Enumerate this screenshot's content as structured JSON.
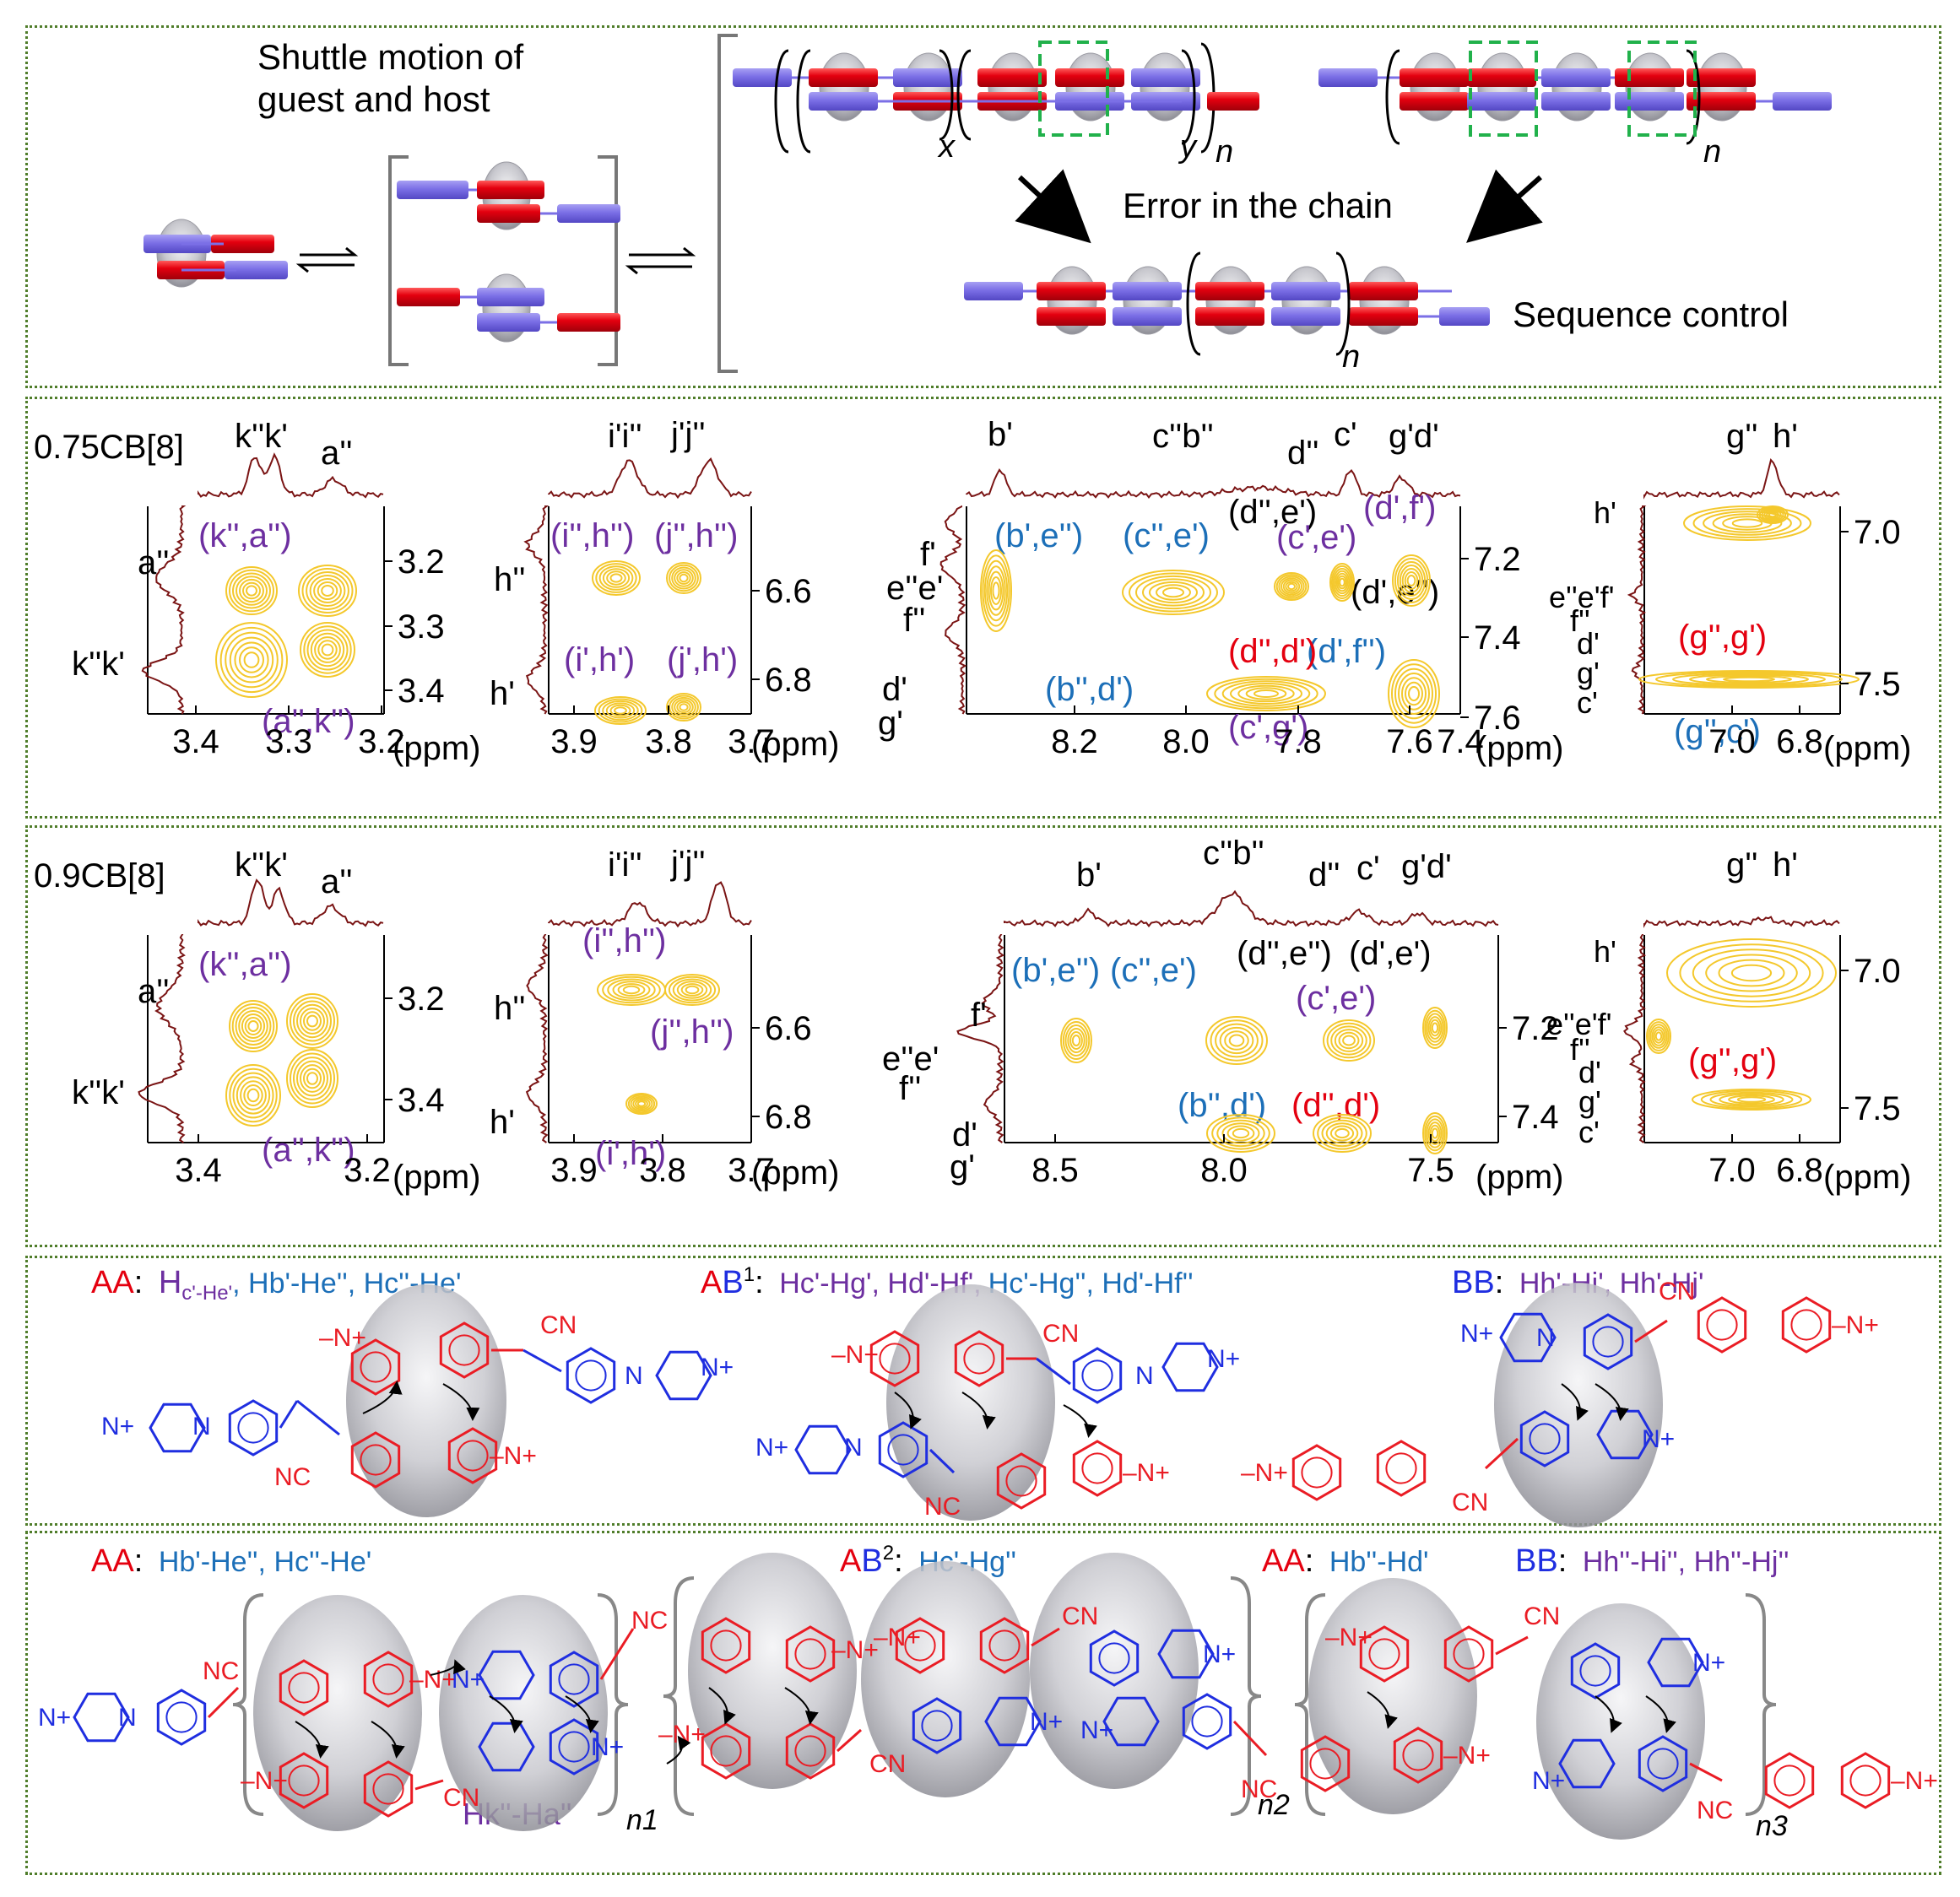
{
  "colors": {
    "guest_red": "#e4000f",
    "guest_blue": "#7b6fe6",
    "host_grey": "#b9b9bf",
    "error_box": "#21b14b",
    "contour": "#f4c82c",
    "trace": "#7a1414",
    "label_purple": "#6d2fa0",
    "label_blue": "#1c6fb8",
    "label_red": "#e4000f",
    "struct_red": "#ea1c24",
    "struct_blue": "#1f2ee0",
    "panel_border": "#4f7d2a"
  },
  "top": {
    "shuttle": "Shuttle motion of guest and host",
    "error": "Error in the chain",
    "sequence": "Sequence control",
    "sub_x": "x",
    "sub_y": "y",
    "sub_n": "n"
  },
  "nmr": {
    "ppm": "(ppm)",
    "row1": {
      "name": "0.75CB[8]",
      "p1": {
        "top": [
          "k''k'",
          "a''"
        ],
        "left": [
          "a''",
          "k''k'"
        ],
        "cross": [
          "(k'',a'')",
          "(a'',k'')"
        ],
        "yticks": [
          "3.2",
          "3.3",
          "3.4"
        ],
        "xticks": [
          "3.4",
          "3.3",
          "3.2"
        ]
      },
      "p2": {
        "top": [
          "i'i''",
          "j'j''"
        ],
        "left": [
          "h''",
          "h'"
        ],
        "cross": [
          "(i'',h'')",
          "(j'',h'')",
          "(i',h')",
          "(j',h')"
        ],
        "yticks": [
          "6.6",
          "6.8"
        ],
        "xticks": [
          "3.9",
          "3.8",
          "3.7"
        ]
      },
      "p3": {
        "top": [
          "b'",
          "c''b''",
          "d''",
          "c'",
          "g'd'"
        ],
        "left": [
          "f'",
          "e''e'",
          "f''",
          "d'",
          "g'"
        ],
        "cross_blue": [
          "(b',e'')",
          "(c'',e')",
          "(d',f'')",
          "(b'',d')"
        ],
        "cross_black": [
          "(d'',e')",
          "(d',e'')"
        ],
        "cross_purple": [
          "(c',e')",
          "(c',g')"
        ],
        "cross_red": [
          "(d'',d')"
        ],
        "cross_purple2": [
          "(d',f')"
        ],
        "yticks": [
          "7.2",
          "7.4",
          "7.6"
        ],
        "xticks": [
          "8.2",
          "8.0",
          "7.8",
          "7.6",
          "7.4"
        ]
      },
      "p4": {
        "top": [
          "g''",
          "h'"
        ],
        "left": [
          "h'",
          "e''e'f'",
          "f''",
          "d'",
          "g'",
          "c'"
        ],
        "cross_red": [
          "(g'',g')"
        ],
        "cross_blue": [
          "(g'',c')"
        ],
        "yticks": [
          "7.0",
          "7.5"
        ],
        "xticks": [
          "7.0",
          "6.8"
        ]
      }
    },
    "row2": {
      "name": "0.9CB[8]",
      "p1": {
        "top": [
          "k''k'",
          "a''"
        ],
        "left": [
          "a''",
          "k''k'"
        ],
        "cross": [
          "(k'',a'')",
          "(a'',k'')"
        ],
        "yticks": [
          "3.2",
          "3.4"
        ],
        "xticks": [
          "3.4",
          "3.2"
        ]
      },
      "p2": {
        "top": [
          "i'i''",
          "j'j''"
        ],
        "left": [
          "h''",
          "h'"
        ],
        "cross": [
          "(i'',h'')",
          "(j'',h'')",
          "(i',h')"
        ],
        "yticks": [
          "6.6",
          "6.8"
        ],
        "xticks": [
          "3.9",
          "3.8",
          "3.7"
        ]
      },
      "p3": {
        "top": [
          "b'",
          "c''b''",
          "d''",
          "c'",
          "g'd'"
        ],
        "left": [
          "f'",
          "e''e'",
          "f''",
          "d'",
          "g'"
        ],
        "cross_blue": [
          "(b',e'')",
          "(c'',e')",
          "(b'',d')"
        ],
        "cross_black": [
          "(d'',e'')",
          "(d',e')"
        ],
        "cross_purple": [
          "(c',e')"
        ],
        "cross_red": [
          "(d'',d')"
        ],
        "yticks": [
          "7.2",
          "7.4"
        ],
        "xticks": [
          "8.5",
          "8.0",
          "7.5"
        ]
      },
      "p4": {
        "top": [
          "g''",
          "h'"
        ],
        "left": [
          "h'",
          "e''e'f'",
          "f''",
          "d'",
          "g'",
          "c'"
        ],
        "cross_red": [
          "(g'',g')"
        ],
        "yticks": [
          "7.0",
          "7.5"
        ],
        "xticks": [
          "7.0",
          "6.8"
        ]
      }
    }
  },
  "structures": {
    "row1": {
      "aa_tag": "AA",
      "aa_colon": ":",
      "aa_p1": "H",
      "aa_list_purple": "c'-He'",
      "aa_list_blue": ", Hb'-He'', Hc''-He'",
      "ab_tag_a": "A",
      "ab_tag_b": "B",
      "ab_sup": "1",
      "ab_colon": ":",
      "ab_list_purple": "Hc'-Hg', Hd'-Hf',",
      "ab_list_blue": "Hc'-Hg'', Hd'-Hf''",
      "bb_tag": "BB",
      "bb_colon": ":",
      "bb_list": "Hh'-Hi', Hh'-Hj'"
    },
    "row2": {
      "aa_tag": "AA",
      "aa_colon": ":",
      "aa_list": "Hb'-He'', Hc''-He'",
      "ab_tag_a": "A",
      "ab_tag_b": "B",
      "ab_sup": "2",
      "ab_colon": ":",
      "ab_list": "Hc'-Hg''",
      "aa2_tag": "AA",
      "aa2_colon": ":",
      "aa2_list": "Hb''-Hd'",
      "bb_tag": "BB",
      "bb_colon": ":",
      "bb_list": "Hh''-Hi'', Hh''-Hj''",
      "hk_label": "Hk''-Ha''",
      "n1": "n1",
      "n2": "n2",
      "n3": "n3"
    },
    "chem": {
      "cn": "CN",
      "nc": "NC",
      "n_plus": "N+",
      "n": "N",
      "methyl": "–N+",
      "dimethyl": "N+"
    }
  }
}
